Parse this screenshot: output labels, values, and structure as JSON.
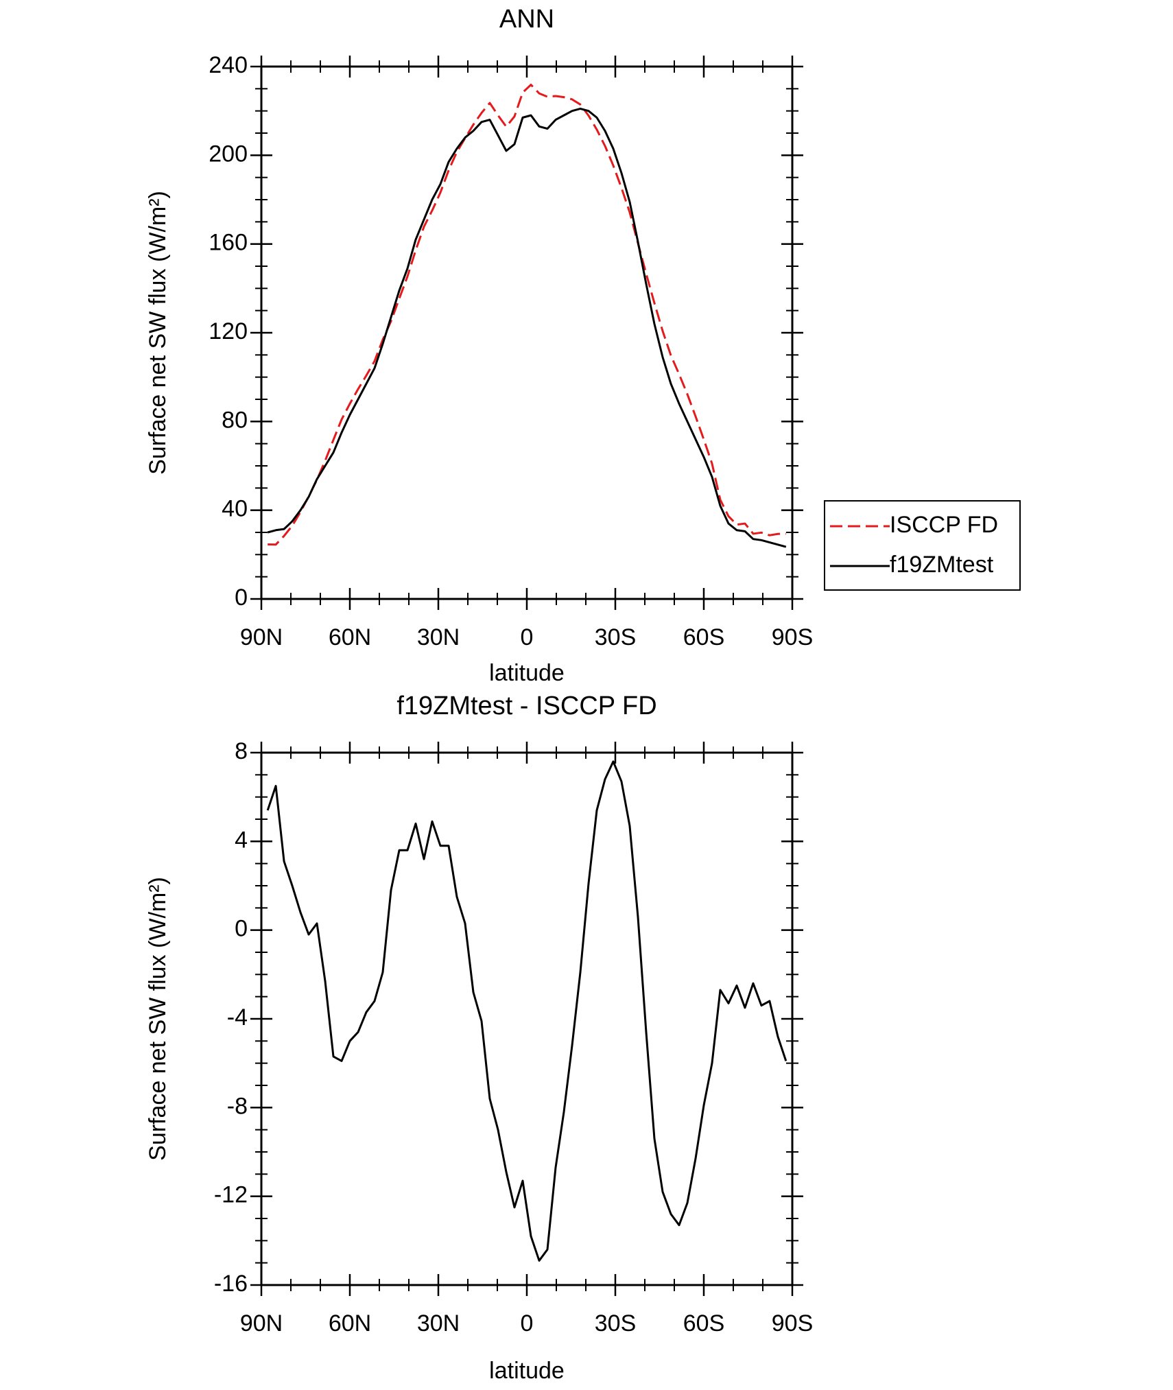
{
  "chart_data": [
    {
      "type": "line",
      "title": "ANN",
      "xlabel": "latitude",
      "ylabel": "Surface net SW flux (W/m²)",
      "x": [
        87.86,
        85.1,
        82.31,
        79.53,
        76.74,
        73.95,
        71.16,
        68.37,
        65.58,
        62.79,
        60.0,
        57.21,
        54.42,
        51.63,
        48.84,
        46.05,
        43.25,
        40.46,
        37.67,
        34.88,
        32.09,
        29.3,
        26.51,
        23.72,
        20.93,
        18.14,
        15.35,
        12.56,
        9.77,
        6.98,
        4.19,
        1.4,
        -1.4,
        -4.19,
        -6.98,
        -9.77,
        -12.56,
        -15.35,
        -18.14,
        -20.93,
        -23.72,
        -26.51,
        -29.3,
        -32.09,
        -34.88,
        -37.67,
        -40.46,
        -43.25,
        -46.05,
        -48.84,
        -51.63,
        -54.42,
        -57.21,
        -60.0,
        -62.79,
        -65.58,
        -68.37,
        -71.16,
        -73.95,
        -76.74,
        -79.53,
        -82.31,
        -85.1,
        -87.86
      ],
      "series": [
        {
          "name": "ISCCP FD",
          "color": "#e41a1c",
          "linestyle": "dashed",
          "values": [
            24.6,
            24.5,
            28.4,
            33,
            39.2,
            46.2,
            53.7,
            62.3,
            71.7,
            80.9,
            88,
            94.6,
            100.7,
            107.2,
            116.9,
            125.2,
            135.4,
            145.4,
            157.2,
            167.8,
            175.1,
            183.2,
            193.2,
            201.5,
            207.7,
            213.8,
            219.1,
            223.6,
            218,
            212.9,
            217.5,
            228.3,
            231.8,
            227.9,
            226.4,
            226.7,
            226.2,
            225.2,
            222.9,
            217.9,
            211.6,
            204.2,
            195.4,
            185.3,
            174.3,
            160.4,
            146.6,
            133.4,
            120.8,
            109.8,
            101.3,
            92.3,
            82.3,
            71.9,
            61,
            44.7,
            37.3,
            33.5,
            34,
            29.4,
            29.9,
            28.7,
            29.3,
            29.4
          ]
        },
        {
          "name": "f19ZMtest",
          "color": "#000000",
          "linestyle": "solid",
          "values": [
            30,
            31,
            31.5,
            35,
            40,
            46,
            54,
            60,
            66,
            75,
            83,
            90,
            97,
            104,
            115,
            127,
            139,
            149,
            162,
            171,
            180,
            187,
            197,
            203,
            208,
            211,
            215,
            216,
            209,
            202,
            205,
            217,
            218,
            213,
            212,
            216,
            218,
            220,
            221,
            220,
            217,
            211,
            203,
            192,
            179,
            161,
            142,
            124,
            109,
            97,
            88,
            80,
            72,
            64,
            55,
            42,
            34,
            31,
            30.5,
            27,
            26.5,
            25.5,
            24.5,
            23.5
          ]
        }
      ],
      "xlim": [
        90,
        -90
      ],
      "xticks": [
        {
          "value": 90,
          "label": "90N"
        },
        {
          "value": 60,
          "label": "60N"
        },
        {
          "value": 30,
          "label": "30N"
        },
        0,
        {
          "value": -30,
          "label": "30S"
        },
        {
          "value": -60,
          "label": "60S"
        },
        {
          "value": -90,
          "label": "90S"
        }
      ],
      "ylim": [
        0,
        240
      ],
      "yticks": [
        0,
        40,
        80,
        120,
        160,
        200,
        240
      ],
      "legend": "right"
    },
    {
      "type": "line",
      "title": "f19ZMtest - ISCCP FD",
      "xlabel": "latitude",
      "ylabel": "Surface net SW flux (W/m²)",
      "x": [
        87.86,
        85.1,
        82.31,
        79.53,
        76.74,
        73.95,
        71.16,
        68.37,
        65.58,
        62.79,
        60.0,
        57.21,
        54.42,
        51.63,
        48.84,
        46.05,
        43.25,
        40.46,
        37.67,
        34.88,
        32.09,
        29.3,
        26.51,
        23.72,
        20.93,
        18.14,
        15.35,
        12.56,
        9.77,
        6.98,
        4.19,
        1.4,
        -1.4,
        -4.19,
        -6.98,
        -9.77,
        -12.56,
        -15.35,
        -18.14,
        -20.93,
        -23.72,
        -26.51,
        -29.3,
        -32.09,
        -34.88,
        -37.67,
        -40.46,
        -43.25,
        -46.05,
        -48.84,
        -51.63,
        -54.42,
        -57.21,
        -60.0,
        -62.79,
        -65.58,
        -68.37,
        -71.16,
        -73.95,
        -76.74,
        -79.53,
        -82.31,
        -85.1,
        -87.86
      ],
      "series": [
        {
          "color": "#000000",
          "linestyle": "solid",
          "values": [
            5.4,
            6.5,
            3.1,
            2.0,
            0.8,
            -0.2,
            0.3,
            -2.3,
            -5.7,
            -5.9,
            -5.0,
            -4.6,
            -3.7,
            -3.2,
            -1.9,
            1.8,
            3.6,
            3.6,
            4.8,
            3.2,
            4.9,
            3.8,
            3.8,
            1.5,
            0.3,
            -2.8,
            -4.1,
            -7.6,
            -9.0,
            -10.9,
            -12.5,
            -11.3,
            -13.8,
            -14.9,
            -14.4,
            -10.7,
            -8.2,
            -5.2,
            -1.9,
            2.1,
            5.4,
            6.8,
            7.6,
            6.7,
            4.7,
            0.6,
            -4.6,
            -9.4,
            -11.8,
            -12.8,
            -13.3,
            -12.3,
            -10.3,
            -7.9,
            -6.0,
            -2.7,
            -3.3,
            -2.5,
            -3.5,
            -2.4,
            -3.4,
            -3.2,
            -4.8,
            -5.9
          ]
        }
      ],
      "xlim": [
        90,
        -90
      ],
      "xticks": [
        {
          "value": 90,
          "label": "90N"
        },
        {
          "value": 60,
          "label": "60N"
        },
        {
          "value": 30,
          "label": "30N"
        },
        0,
        {
          "value": -30,
          "label": "30S"
        },
        {
          "value": -60,
          "label": "60S"
        },
        {
          "value": -90,
          "label": "90S"
        }
      ],
      "ylim": [
        -16,
        8
      ],
      "yticks": [
        -16,
        -12,
        -8,
        -4,
        0,
        4,
        8
      ]
    }
  ]
}
